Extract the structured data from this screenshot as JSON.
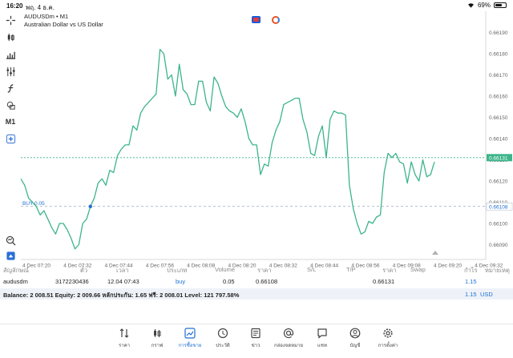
{
  "status": {
    "time": "16:20",
    "date": "พฤ. 4 ธ.ค.",
    "battery": "69%",
    "battery_level": 0.69
  },
  "chart": {
    "symbol_line": "AUDUSDm • M1",
    "description": "Australian Dollar vs US Dollar",
    "timeframe": "M1",
    "price_labels": [
      "0.66190",
      "0.66180",
      "0.66170",
      "0.66160",
      "0.66150",
      "0.66140",
      "0.66130",
      "0.66120",
      "0.66110",
      "0.66100",
      "0.66090"
    ],
    "current_price_label": "0.66131",
    "entry_price_label": "0.66108",
    "buy_label": "BUY 0.05",
    "time_labels": [
      "4 Dec 07:20",
      "4 Dec 07:32",
      "4 Dec 07:44",
      "4 Dec 07:56",
      "4 Dec 08:08",
      "4 Dec 08:20",
      "4 Dec 08:32",
      "4 Dec 08:44",
      "4 Dec 08:56",
      "4 Dec 09:08",
      "4 Dec 09:20",
      "4 Dec 09:32"
    ],
    "line_color": "#3cb58a",
    "current_line_color": "#3cb58a",
    "entry_line_color": "#9aa8b8"
  },
  "chart_data": {
    "type": "line",
    "y_range": [
      0.66083,
      0.662
    ],
    "series": [
      {
        "values": [
          0.66121,
          0.66118,
          0.66112,
          0.6611,
          0.66108,
          0.66104,
          0.66106,
          0.66102,
          0.66098,
          0.66095,
          0.661,
          0.661,
          0.66097,
          0.66093,
          0.66088,
          0.6609,
          0.661,
          0.66102,
          0.66108,
          0.66112,
          0.66119,
          0.66121,
          0.66118,
          0.66125,
          0.66124,
          0.66132,
          0.66135,
          0.66137,
          0.66137,
          0.66146,
          0.66144,
          0.66152,
          0.66155,
          0.66157,
          0.66159,
          0.66161,
          0.66182,
          0.6618,
          0.66168,
          0.6617,
          0.6616,
          0.66175,
          0.66163,
          0.66161,
          0.66156,
          0.66156,
          0.66167,
          0.66167,
          0.66157,
          0.66153,
          0.66169,
          0.66166,
          0.6616,
          0.66155,
          0.66153,
          0.66152,
          0.6615,
          0.66154,
          0.66148,
          0.6614,
          0.66137,
          0.66137,
          0.66123,
          0.66128,
          0.66127,
          0.66138,
          0.66144,
          0.66148,
          0.66156,
          0.66157,
          0.66158,
          0.66159,
          0.66159,
          0.66149,
          0.66143,
          0.66133,
          0.66132,
          0.66141,
          0.66146,
          0.66131,
          0.66149,
          0.66153,
          0.66152,
          0.66152,
          0.66151,
          0.66118,
          0.66107,
          0.661,
          0.66095,
          0.66096,
          0.66101,
          0.661,
          0.66103,
          0.66104,
          0.66124,
          0.66133,
          0.66131,
          0.66133,
          0.66129,
          0.66128,
          0.66119,
          0.66129,
          0.66123,
          0.6612,
          0.6613,
          0.66122,
          0.66123,
          0.66129
        ]
      }
    ]
  },
  "table": {
    "headers": [
      "สัญลักษณ์",
      "ตั๋ว",
      "เวลา",
      "ประเภท",
      "Volume",
      "ราคา",
      "S/L",
      "T/P",
      "ราคา",
      "Swap",
      "กำไร",
      "หมายเหตุ"
    ],
    "row": [
      "audusdm",
      "3172230436",
      "12.04 07:43",
      "buy",
      "0.05",
      "0.66108",
      "",
      "",
      "0.66131",
      "",
      "1.15",
      ""
    ]
  },
  "balance": {
    "text": "Balance: 2 008.51 Equity: 2 009.66 หลักประกัน: 1.65 ฟรี: 2 008.01 Level: 121 797.58%",
    "profit": "1.15",
    "currency": "USD"
  },
  "nav": [
    {
      "label": "ราคา",
      "icon": "quotes-icon"
    },
    {
      "label": "กราฟ",
      "icon": "chart-icon"
    },
    {
      "label": "การซื้อขาย",
      "icon": "trade-icon"
    },
    {
      "label": "ประวัติ",
      "icon": "history-icon"
    },
    {
      "label": "ข่าว",
      "icon": "news-icon"
    },
    {
      "label": "กล่องจดหมาย",
      "icon": "mailbox-icon"
    },
    {
      "label": "แชท",
      "icon": "chat-icon"
    },
    {
      "label": "บัญชี",
      "icon": "account-icon"
    },
    {
      "label": "การตั้งค่า",
      "icon": "settings-icon"
    }
  ]
}
